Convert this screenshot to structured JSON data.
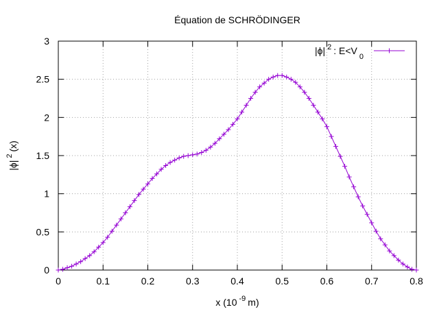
{
  "chart_data": {
    "type": "line",
    "title": "Équation de SCHRÖDINGER",
    "x_label": [
      "x (10",
      "-9",
      "m)"
    ],
    "y_label": [
      "|ϕ|",
      "2",
      "(x)"
    ],
    "x": [
      0,
      0.01,
      0.02,
      0.03,
      0.04,
      0.05,
      0.06,
      0.07,
      0.08,
      0.09,
      0.1,
      0.11,
      0.12,
      0.13,
      0.14,
      0.15,
      0.16,
      0.17,
      0.18,
      0.19,
      0.2,
      0.21,
      0.22,
      0.23,
      0.24,
      0.25,
      0.26,
      0.27,
      0.28,
      0.29,
      0.3,
      0.31,
      0.32,
      0.33,
      0.34,
      0.35,
      0.36,
      0.37,
      0.38,
      0.39,
      0.4,
      0.41,
      0.42,
      0.43,
      0.44,
      0.45,
      0.46,
      0.47,
      0.48,
      0.49,
      0.5,
      0.51,
      0.52,
      0.53,
      0.54,
      0.55,
      0.56,
      0.57,
      0.58,
      0.59,
      0.6,
      0.61,
      0.62,
      0.63,
      0.64,
      0.65,
      0.66,
      0.67,
      0.68,
      0.69,
      0.7,
      0.71,
      0.72,
      0.73,
      0.74,
      0.75,
      0.76,
      0.77,
      0.78,
      0.79,
      0.8
    ],
    "series": [
      {
        "name": [
          "|ϕ|",
          "2",
          ": E<V",
          "0"
        ],
        "color": "#9400d3",
        "values": [
          0,
          0.01,
          0.03,
          0.05,
          0.08,
          0.11,
          0.15,
          0.19,
          0.24,
          0.3,
          0.36,
          0.43,
          0.51,
          0.59,
          0.67,
          0.75,
          0.83,
          0.91,
          0.99,
          1.06,
          1.13,
          1.2,
          1.26,
          1.32,
          1.37,
          1.41,
          1.44,
          1.47,
          1.49,
          1.5,
          1.51,
          1.52,
          1.54,
          1.57,
          1.61,
          1.66,
          1.72,
          1.78,
          1.84,
          1.91,
          1.98,
          2.07,
          2.16,
          2.25,
          2.33,
          2.4,
          2.45,
          2.5,
          2.53,
          2.55,
          2.55,
          2.53,
          2.5,
          2.46,
          2.4,
          2.33,
          2.25,
          2.16,
          2.07,
          1.98,
          1.88,
          1.75,
          1.62,
          1.49,
          1.36,
          1.22,
          1.09,
          0.96,
          0.84,
          0.73,
          0.62,
          0.51,
          0.41,
          0.33,
          0.25,
          0.19,
          0.13,
          0.08,
          0.04,
          0.01,
          0
        ]
      }
    ],
    "xlim": [
      0,
      0.8
    ],
    "xticks": [
      0,
      0.1,
      0.2,
      0.3,
      0.4,
      0.5,
      0.6,
      0.7,
      0.8
    ],
    "ylim": [
      0,
      3
    ],
    "yticks": [
      0,
      0.5,
      1,
      1.5,
      2,
      2.5,
      3
    ],
    "grid": true,
    "legend": "top-right"
  }
}
